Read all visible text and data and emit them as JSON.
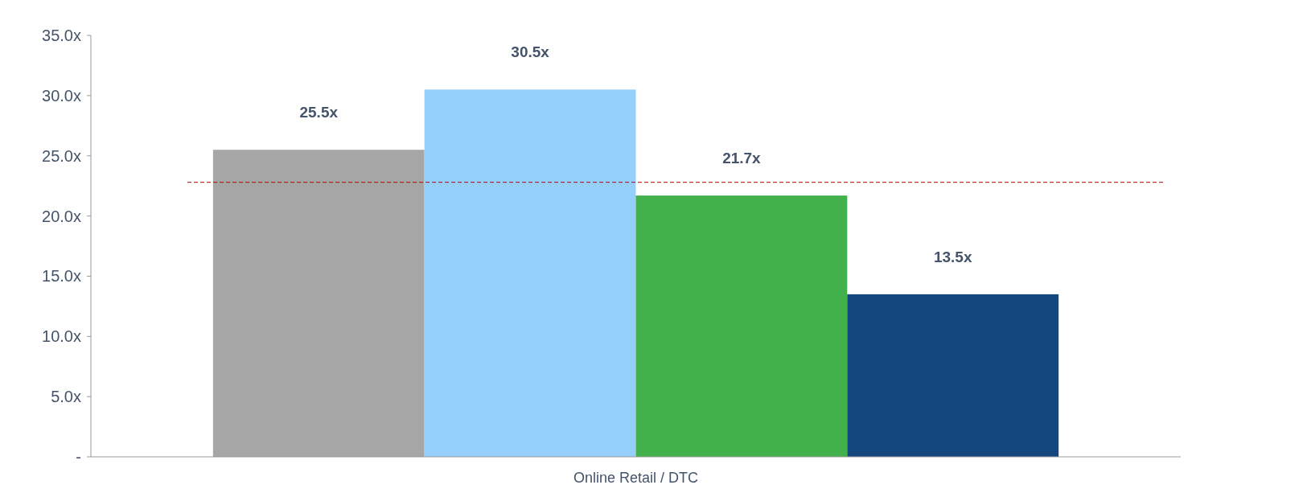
{
  "chart_data": {
    "type": "bar",
    "categories": [
      "Online Retail / DTC"
    ],
    "series": [
      {
        "color": "#a6a6a6",
        "values": [
          25.5
        ],
        "value_labels": [
          "25.5x"
        ]
      },
      {
        "color": "#95d0fc",
        "values": [
          30.5
        ],
        "value_labels": [
          "30.5x"
        ]
      },
      {
        "color": "#43b14b",
        "values": [
          21.7
        ],
        "value_labels": [
          "21.7x"
        ]
      },
      {
        "color": "#14477e",
        "values": [
          13.5
        ],
        "value_labels": [
          "13.5x"
        ]
      }
    ],
    "ylim": [
      0,
      35
    ],
    "yticks": [
      {
        "value": 0,
        "label": "-"
      },
      {
        "value": 5,
        "label": "5.0x"
      },
      {
        "value": 10,
        "label": "10.0x"
      },
      {
        "value": 15,
        "label": "15.0x"
      },
      {
        "value": 20,
        "label": "20.0x"
      },
      {
        "value": 25,
        "label": "25.0x"
      },
      {
        "value": 30,
        "label": "30.0x"
      },
      {
        "value": 35,
        "label": "35.0x"
      }
    ],
    "ref_lines": [
      {
        "axis": "y",
        "value": 22.8,
        "color": "#c00000",
        "line_style": "dashed"
      }
    ],
    "grid": false
  }
}
